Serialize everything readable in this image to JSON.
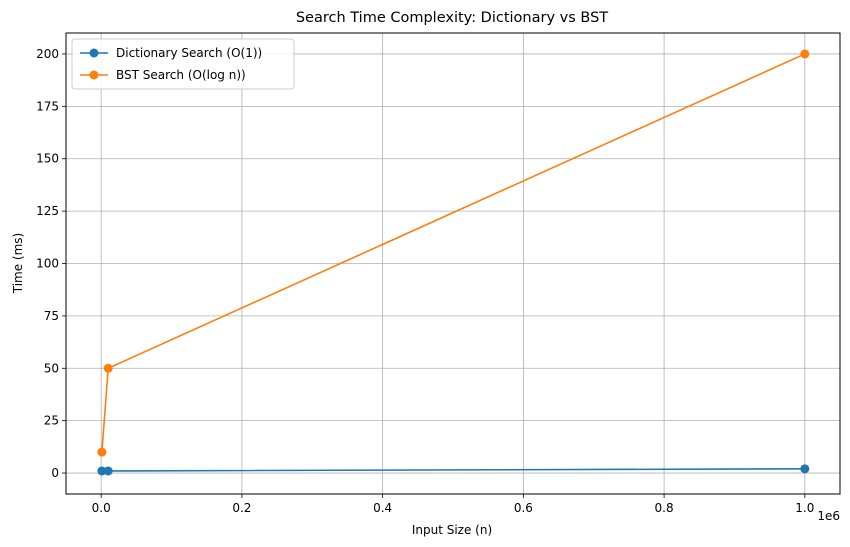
{
  "chart_data": {
    "type": "line",
    "title": "Search Time Complexity: Dictionary vs BST",
    "xlabel": "Input Size (n)",
    "ylabel": "Time (ms)",
    "x_offset_label": "1e6",
    "x": [
      1000,
      10000,
      1000000
    ],
    "xlim": [
      -50000,
      1050000
    ],
    "ylim": [
      -10,
      210
    ],
    "xticks": [
      0,
      200000,
      400000,
      600000,
      800000,
      1000000
    ],
    "xtick_labels": [
      "0.0",
      "0.2",
      "0.4",
      "0.6",
      "0.8",
      "1.0"
    ],
    "yticks": [
      0,
      25,
      50,
      75,
      100,
      125,
      150,
      175,
      200
    ],
    "ytick_labels": [
      "0",
      "25",
      "50",
      "75",
      "100",
      "125",
      "150",
      "175",
      "200"
    ],
    "grid": true,
    "legend_position": "top-left",
    "series": [
      {
        "name": "Dictionary Search (O(1))",
        "color": "#1f77b4",
        "values": [
          1,
          1,
          2
        ]
      },
      {
        "name": "BST Search (O(log n))",
        "color": "#ff7f0e",
        "values": [
          10,
          50,
          200
        ]
      }
    ]
  }
}
